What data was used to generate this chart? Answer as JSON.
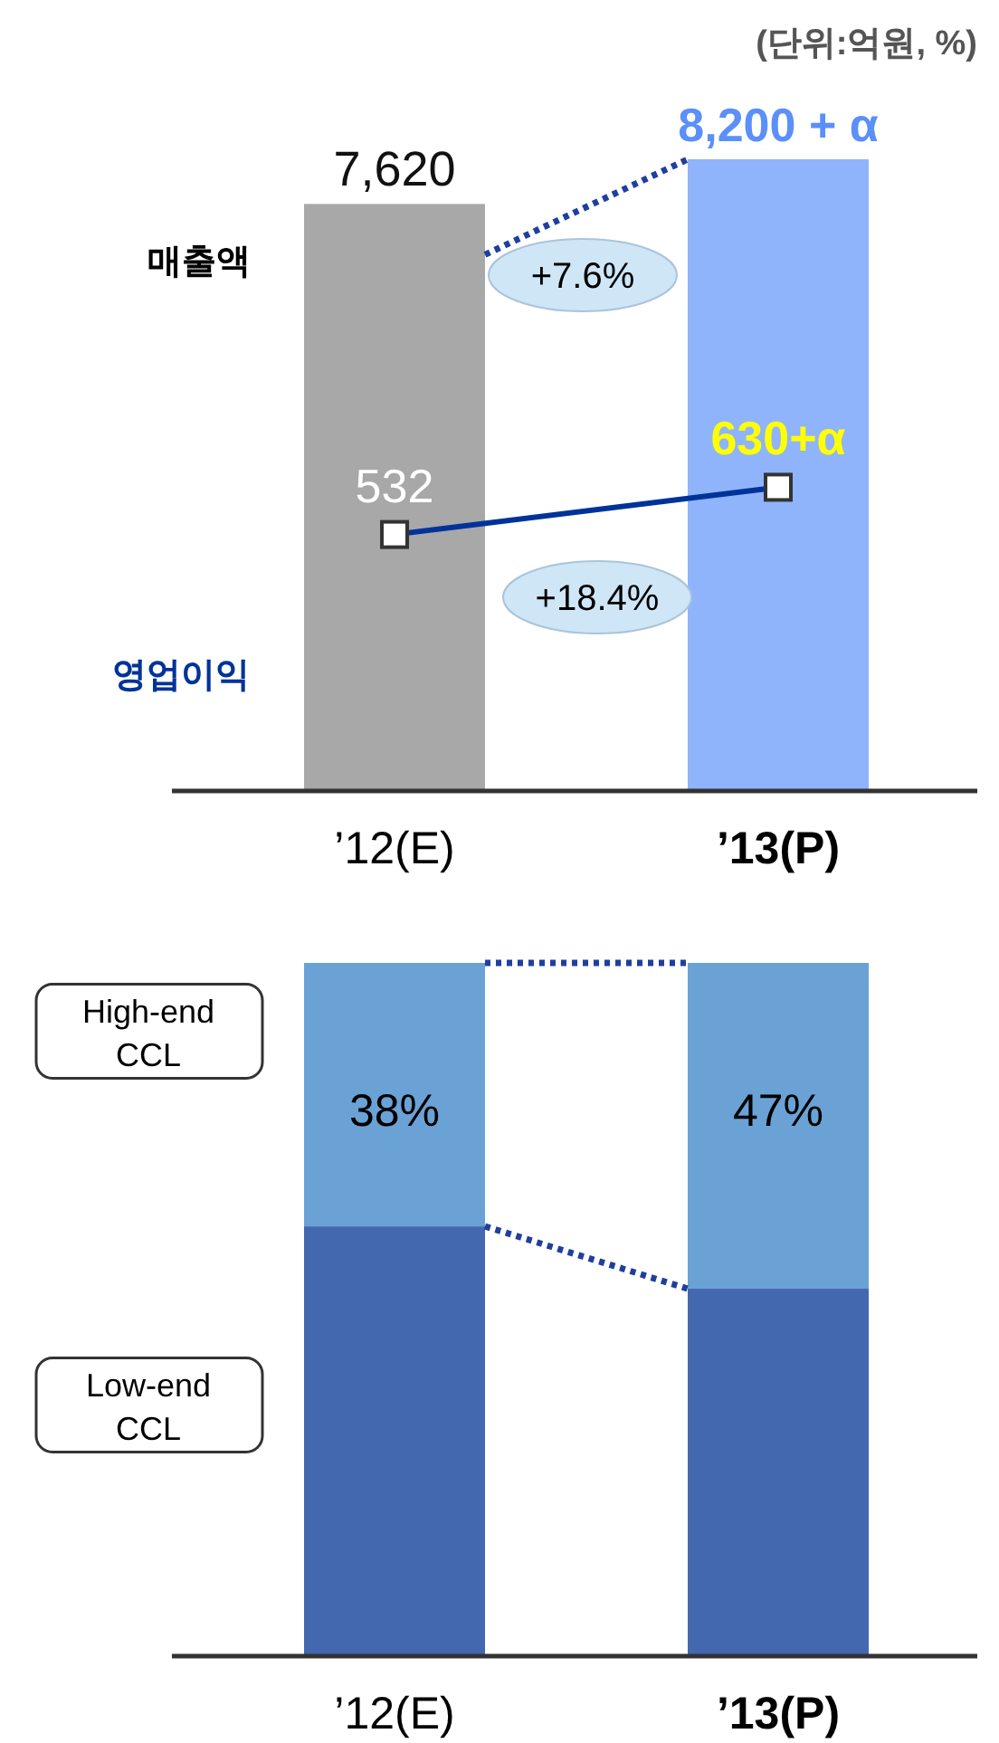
{
  "chart_data": [
    {
      "type": "bar",
      "categories": [
        "’12(E)",
        "**’13(P)**"
      ],
      "annotations": [
        "(단위:억원, %)",
        "+7.6%",
        "+18.4%"
      ],
      "series": [
        {
          "name": "매출액",
          "type": "bar",
          "colors": [
            "#a8a8a8",
            "#8fb4fb"
          ],
          "values": [
            7620,
            8200
          ],
          "value_labels": [
            "7,620",
            "8,200 + α"
          ]
        },
        {
          "name": "영업이익",
          "type": "line",
          "axis": "y2",
          "color": "#003399",
          "marker": "square",
          "values": [
            532,
            630
          ],
          "value_labels": [
            "532",
            "630+α"
          ]
        }
      ]
    },
    {
      "type": "bar",
      "stacked": true,
      "categories": [
        "’12(E)",
        "**’13(P)**"
      ],
      "series": [
        {
          "name": "Low-end CCL",
          "color": "#4468b0",
          "values": [
            62,
            53
          ]
        },
        {
          "name": "High-end CCL",
          "color": "#6aa2d6",
          "values": [
            38,
            47
          ],
          "value_labels": [
            "38%",
            "47%"
          ]
        }
      ]
    }
  ]
}
